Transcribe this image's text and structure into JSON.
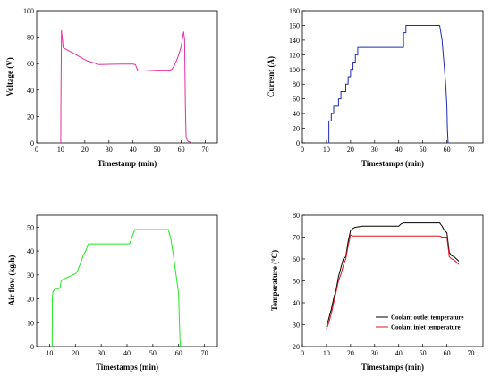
{
  "chart_data": [
    {
      "type": "line",
      "xlabel": "Timestamp (min)",
      "ylabel": "Voltage (V)",
      "xlim": [
        0,
        75
      ],
      "ylim": [
        0,
        100
      ],
      "xticks": [
        0,
        10,
        20,
        30,
        40,
        50,
        60,
        70
      ],
      "yticks": [
        0,
        20,
        40,
        60,
        80,
        100
      ],
      "grid": false,
      "series": [
        {
          "color": "#e62ea0",
          "x": [
            10.0,
            10.05,
            10.3,
            10.6,
            11.0,
            12.0,
            13.0,
            14.0,
            15.0,
            16.0,
            17.0,
            18.0,
            19.0,
            20.0,
            21.0,
            22.0,
            23.0,
            24.0,
            25.0,
            26.0,
            30.0,
            35.0,
            40.0,
            41.0,
            42.0,
            43.0,
            45.0,
            50.0,
            55.0,
            56.0,
            57.0,
            58.0,
            59.0,
            60.0,
            60.5,
            61.0,
            61.4,
            61.7,
            62.0,
            62.5,
            63.0,
            64.0
          ],
          "y": [
            0,
            30,
            85,
            80,
            72,
            71,
            70,
            69,
            68,
            67,
            66,
            65,
            64,
            63,
            62,
            61.5,
            61,
            60.5,
            59.5,
            59.3,
            59.5,
            59.6,
            59.6,
            59.2,
            54.5,
            54.3,
            54.5,
            55,
            55,
            55.5,
            58,
            62,
            67,
            73,
            79,
            84,
            78,
            30,
            5,
            2,
            1,
            0.5
          ]
        }
      ]
    },
    {
      "type": "line",
      "xlabel": "Timestamps (min)",
      "ylabel": "Current (A)",
      "xlim": [
        0,
        75
      ],
      "ylim": [
        0,
        180
      ],
      "xticks": [
        0,
        10,
        20,
        30,
        40,
        50,
        60,
        70
      ],
      "yticks": [
        0,
        20,
        40,
        60,
        80,
        100,
        120,
        140,
        160,
        180
      ],
      "grid": false,
      "series": [
        {
          "color": "#1f2bb4",
          "x": [
            10,
            11,
            11,
            12,
            12,
            13,
            13,
            14,
            14,
            15,
            15,
            16,
            16,
            17,
            17,
            18,
            18,
            19,
            19,
            20,
            20,
            21,
            21,
            22,
            22,
            23,
            23,
            24,
            24,
            25,
            25,
            42,
            42,
            43,
            43,
            57,
            58,
            59,
            59.5,
            60,
            60.2,
            60.5,
            61
          ],
          "y": [
            0,
            0,
            30,
            30,
            40,
            40,
            50,
            50,
            50,
            50,
            60,
            60,
            70,
            70,
            70,
            70,
            80,
            80,
            90,
            90,
            100,
            100,
            110,
            110,
            120,
            120,
            130,
            130,
            130,
            130,
            130,
            130,
            150,
            150,
            160,
            160,
            140,
            100,
            80,
            50,
            20,
            0,
            0
          ]
        }
      ]
    },
    {
      "type": "line",
      "xlabel": "Timestamps (min)",
      "ylabel": "Air flow (kg/h)",
      "xlim": [
        5,
        75
      ],
      "ylim": [
        0,
        55
      ],
      "xticks": [
        10,
        20,
        30,
        40,
        50,
        60,
        70
      ],
      "yticks": [
        0,
        10,
        20,
        30,
        40,
        50
      ],
      "grid": false,
      "series": [
        {
          "color": "#22e622",
          "x": [
            11.0,
            11.05,
            11.3,
            12.0,
            13.0,
            14.0,
            14.5,
            15.0,
            16.0,
            17.0,
            18.0,
            19.0,
            20.0,
            21.0,
            22.0,
            23.0,
            24.0,
            25.0,
            26.0,
            30.0,
            35.0,
            40.0,
            41.0,
            42.0,
            43.0,
            45.0,
            50.0,
            55.0,
            56.0,
            57.0,
            58.0,
            59.0,
            60.0,
            60.3,
            60.6
          ],
          "y": [
            0,
            20,
            23,
            24,
            24,
            24.5,
            27.5,
            28,
            28.5,
            29,
            29.5,
            30,
            30.5,
            32,
            35,
            38,
            40,
            43,
            43,
            43,
            43,
            43,
            43,
            46,
            49,
            49,
            49,
            49,
            49,
            45,
            38,
            30,
            22,
            10,
            0
          ]
        }
      ]
    },
    {
      "type": "line",
      "xlabel": "Timestamps (min)",
      "ylabel": "Temperature (°C)",
      "xlim": [
        0,
        75
      ],
      "ylim": [
        20,
        80
      ],
      "xticks": [
        0,
        10,
        20,
        30,
        40,
        50,
        60,
        70
      ],
      "yticks": [
        20,
        30,
        40,
        50,
        60,
        70,
        80
      ],
      "grid": false,
      "legend": "bottom-right",
      "series": [
        {
          "name": "Coolant outlet temperature",
          "color": "#000000",
          "x": [
            10,
            11,
            12,
            13,
            14,
            15,
            16,
            17,
            18,
            19,
            20,
            21,
            22,
            25,
            30,
            35,
            40,
            41,
            42,
            45,
            50,
            55,
            57,
            58,
            59,
            60,
            61,
            62,
            63,
            64,
            65
          ],
          "y": [
            29,
            33,
            37,
            42,
            46,
            52,
            56,
            60,
            61,
            68,
            73,
            74,
            74.5,
            75,
            75,
            75,
            75,
            76,
            76.5,
            76.5,
            76.5,
            76.5,
            76.5,
            75,
            73,
            72,
            63,
            61.5,
            61,
            60,
            59
          ]
        },
        {
          "name": "Coolant inlet temperature",
          "color": "#e0141e",
          "x": [
            10,
            11,
            12,
            13,
            14,
            15,
            16,
            17,
            18,
            19,
            20,
            21,
            22,
            25,
            30,
            35,
            40,
            45,
            50,
            55,
            57,
            58,
            59,
            60,
            61,
            62,
            63,
            64,
            65
          ],
          "y": [
            28,
            31,
            35,
            40,
            45,
            50,
            53,
            57,
            60,
            66,
            71,
            70.5,
            70.5,
            70.5,
            70.5,
            70.5,
            70.5,
            70.5,
            70.5,
            70.5,
            70.5,
            70,
            70,
            70,
            61,
            60,
            59.5,
            58.5,
            57.5
          ]
        }
      ]
    }
  ]
}
